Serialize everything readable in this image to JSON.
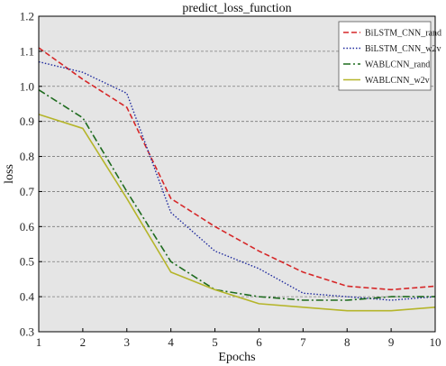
{
  "chart_data": {
    "type": "line",
    "title": "predict_loss_function",
    "xlabel": "Epochs",
    "ylabel": "loss",
    "x": [
      1,
      2,
      3,
      4,
      5,
      6,
      7,
      8,
      9,
      10
    ],
    "xticks": [
      "1",
      "2",
      "3",
      "4",
      "5",
      "6",
      "7",
      "8",
      "9",
      "10"
    ],
    "yticks": [
      "0.3",
      "0.4",
      "0.5",
      "0.6",
      "0.7",
      "0.8",
      "0.9",
      "1.0",
      "1.1",
      "1.2"
    ],
    "xlim": [
      1,
      10
    ],
    "ylim": [
      0.3,
      1.2
    ],
    "grid": "horizontal dashed",
    "background": "#e5e5e5",
    "legend_position": "top-right",
    "series": [
      {
        "name": "BiLSTM_CNN_rand",
        "color": "#d62728",
        "style": "dashed",
        "values": [
          1.11,
          1.02,
          0.94,
          0.68,
          0.6,
          0.53,
          0.47,
          0.43,
          0.42,
          0.43
        ]
      },
      {
        "name": "BiLSTM_CNN_w2v",
        "color": "#1f2a9e",
        "style": "dotted",
        "values": [
          1.07,
          1.04,
          0.98,
          0.64,
          0.53,
          0.48,
          0.41,
          0.4,
          0.39,
          0.4
        ]
      },
      {
        "name": "WABLCNN_rand",
        "color": "#1e6b1e",
        "style": "dashdot",
        "values": [
          0.99,
          0.91,
          0.7,
          0.5,
          0.42,
          0.4,
          0.39,
          0.39,
          0.4,
          0.4
        ]
      },
      {
        "name": "WABLCNN_w2v",
        "color": "#b5b52a",
        "style": "solid",
        "values": [
          0.92,
          0.88,
          0.68,
          0.47,
          0.42,
          0.38,
          0.37,
          0.36,
          0.36,
          0.37
        ]
      }
    ]
  }
}
